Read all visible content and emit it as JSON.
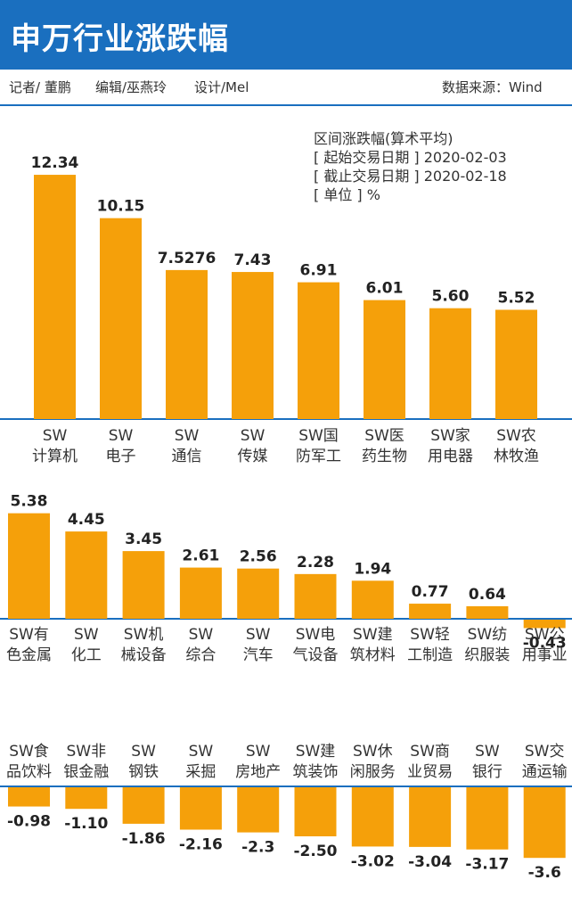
{
  "header": {
    "title": "申万行业涨跌幅"
  },
  "credits": {
    "reporter": "记者/ 董鹏",
    "editor": "编辑/巫燕玲",
    "design": "设计/Mel",
    "source": "数据来源：Wind"
  },
  "legend": {
    "line1": "区间涨跌幅(算术平均)",
    "line2": "[ 起始交易日期 ] 2020-02-03",
    "line3": "[ 截止交易日期 ] 2020-02-18",
    "line4": "[ 单位 ] %"
  },
  "colors": {
    "header": "#1a6fbf",
    "bar": "#f5a00a",
    "axis": "#1a6fbf"
  },
  "chart_data": [
    {
      "type": "bar",
      "categories": [
        [
          "SW",
          "计算机"
        ],
        [
          "SW",
          "电子"
        ],
        [
          "SW",
          "通信"
        ],
        [
          "SW",
          "传媒"
        ],
        [
          "SW国",
          "防军工"
        ],
        [
          "SW医",
          "药生物"
        ],
        [
          "SW家",
          "用电器"
        ],
        [
          "SW农",
          "林牧渔"
        ]
      ],
      "value_labels": [
        "12.34",
        "10.15",
        "7.5276",
        "7.43",
        "6.91",
        "6.01",
        "5.60",
        "5.52"
      ],
      "values": [
        12.34,
        10.15,
        7.5276,
        7.43,
        6.91,
        6.01,
        5.6,
        5.52
      ]
    },
    {
      "type": "bar",
      "categories": [
        [
          "SW有",
          "色金属"
        ],
        [
          "SW",
          "化工"
        ],
        [
          "SW机",
          "械设备"
        ],
        [
          "SW",
          "综合"
        ],
        [
          "SW",
          "汽车"
        ],
        [
          "SW电",
          "气设备"
        ],
        [
          "SW建",
          "筑材料"
        ],
        [
          "SW轻",
          "工制造"
        ],
        [
          "SW纺",
          "织服装"
        ],
        [
          "SW公",
          "用事业"
        ]
      ],
      "value_labels": [
        "5.38",
        "4.45",
        "3.45",
        "2.61",
        "2.56",
        "2.28",
        "1.94",
        "0.77",
        "0.64",
        "-0.43"
      ],
      "values": [
        5.38,
        4.45,
        3.45,
        2.61,
        2.56,
        2.28,
        1.94,
        0.77,
        0.64,
        -0.43
      ]
    },
    {
      "type": "bar",
      "categories": [
        [
          "SW食",
          "品饮料"
        ],
        [
          "SW非",
          "银金融"
        ],
        [
          "SW",
          "钢铁"
        ],
        [
          "SW",
          "采掘"
        ],
        [
          "SW",
          "房地产"
        ],
        [
          "SW建",
          "筑装饰"
        ],
        [
          "SW休",
          "闲服务"
        ],
        [
          "SW商",
          "业贸易"
        ],
        [
          "SW",
          "银行"
        ],
        [
          "SW交",
          "通运输"
        ]
      ],
      "value_labels": [
        "-0.98",
        "-1.10",
        "-1.86",
        "-2.16",
        "-2.3",
        "-2.50",
        "-3.02",
        "-3.04",
        "-3.17",
        "-3.6"
      ],
      "values": [
        -0.98,
        -1.1,
        -1.86,
        -2.16,
        -2.3,
        -2.5,
        -3.02,
        -3.04,
        -3.17,
        -3.6
      ]
    }
  ]
}
